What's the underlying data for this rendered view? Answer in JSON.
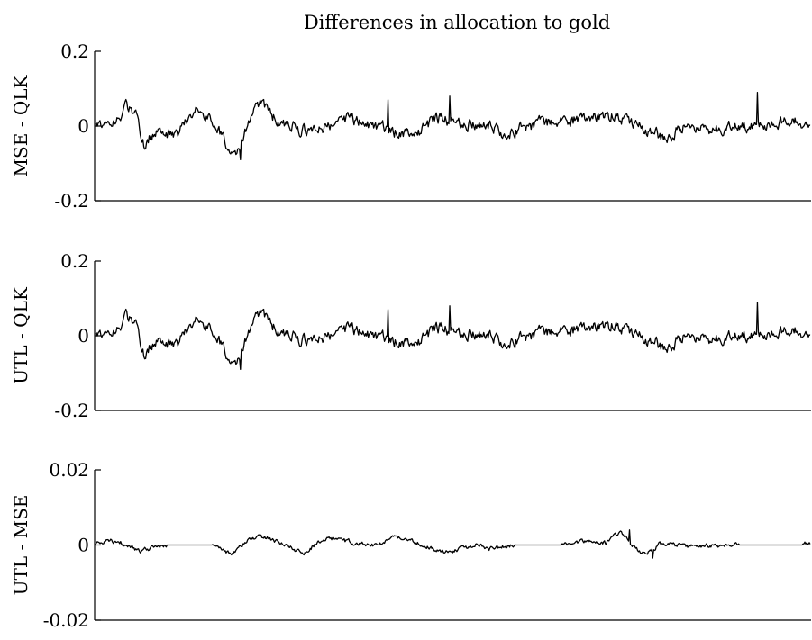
{
  "chart_data": {
    "type": "line",
    "title": "Differences in allocation to gold",
    "n_points": 800,
    "panels": [
      {
        "ylabel": "MSE - QLK",
        "ylim": [
          -0.2,
          0.2
        ],
        "yticks": [
          0.2,
          0,
          -0.2
        ],
        "ytick_labels": [
          "0.2",
          "0",
          "-0.2"
        ],
        "series": [
          {
            "keyframes": [
              [
                0,
                0.01
              ],
              [
                20,
                0.02
              ],
              [
                35,
                0.05
              ],
              [
                45,
                0.03
              ],
              [
                50,
                -0.02
              ],
              [
                55,
                -0.06
              ],
              [
                60,
                -0.03
              ],
              [
                70,
                -0.02
              ],
              [
                90,
                -0.03
              ],
              [
                105,
                0.02
              ],
              [
                115,
                0.04
              ],
              [
                125,
                0.03
              ],
              [
                130,
                0.0
              ],
              [
                140,
                -0.02
              ],
              [
                150,
                -0.06
              ],
              [
                155,
                -0.08
              ],
              [
                160,
                -0.05
              ],
              [
                175,
                0.03
              ],
              [
                185,
                0.06
              ],
              [
                200,
                0.02
              ],
              [
                230,
                -0.01
              ],
              [
                260,
                0.0
              ],
              [
                280,
                0.02
              ],
              [
                300,
                0.01
              ],
              [
                340,
                -0.02
              ],
              [
                360,
                -0.02
              ],
              [
                380,
                0.02
              ],
              [
                410,
                0.01
              ],
              [
                440,
                0.0
              ],
              [
                460,
                -0.02
              ],
              [
                500,
                0.01
              ],
              [
                560,
                0.02
              ],
              [
                580,
                0.03
              ],
              [
                600,
                0.01
              ],
              [
                620,
                -0.02
              ],
              [
                640,
                -0.03
              ],
              [
                660,
                0.0
              ],
              [
                700,
                -0.01
              ],
              [
                720,
                0.0
              ],
              [
                760,
                0.01
              ],
              [
                799,
                0.01
              ]
            ],
            "noise": 0.022,
            "spikes": [
              [
                162,
                -0.09
              ],
              [
                327,
                0.07
              ],
              [
                396,
                0.08
              ],
              [
                740,
                0.09
              ]
            ]
          }
        ]
      },
      {
        "ylabel": "UTL - QLK",
        "ylim": [
          -0.2,
          0.2
        ],
        "yticks": [
          0.2,
          0,
          -0.2
        ],
        "ytick_labels": [
          "0.2",
          "0",
          "-0.2"
        ],
        "series": [
          {
            "keyframes": [
              [
                0,
                0.01
              ],
              [
                20,
                0.02
              ],
              [
                35,
                0.05
              ],
              [
                45,
                0.03
              ],
              [
                50,
                -0.02
              ],
              [
                55,
                -0.06
              ],
              [
                60,
                -0.03
              ],
              [
                70,
                -0.02
              ],
              [
                90,
                -0.03
              ],
              [
                105,
                0.02
              ],
              [
                115,
                0.04
              ],
              [
                125,
                0.03
              ],
              [
                130,
                0.0
              ],
              [
                140,
                -0.02
              ],
              [
                150,
                -0.06
              ],
              [
                155,
                -0.08
              ],
              [
                160,
                -0.05
              ],
              [
                175,
                0.03
              ],
              [
                185,
                0.06
              ],
              [
                200,
                0.02
              ],
              [
                230,
                -0.01
              ],
              [
                260,
                0.0
              ],
              [
                280,
                0.02
              ],
              [
                300,
                0.01
              ],
              [
                340,
                -0.02
              ],
              [
                360,
                -0.02
              ],
              [
                380,
                0.02
              ],
              [
                410,
                0.01
              ],
              [
                440,
                0.0
              ],
              [
                460,
                -0.02
              ],
              [
                500,
                0.01
              ],
              [
                560,
                0.02
              ],
              [
                580,
                0.03
              ],
              [
                600,
                0.01
              ],
              [
                620,
                -0.02
              ],
              [
                640,
                -0.03
              ],
              [
                660,
                0.0
              ],
              [
                700,
                -0.01
              ],
              [
                720,
                0.0
              ],
              [
                760,
                0.01
              ],
              [
                799,
                0.01
              ]
            ],
            "noise": 0.022,
            "spikes": [
              [
                162,
                -0.09
              ],
              [
                327,
                0.07
              ],
              [
                396,
                0.08
              ],
              [
                740,
                0.09
              ]
            ]
          }
        ]
      },
      {
        "ylabel": "UTL - MSE",
        "ylim": [
          -0.02,
          0.02
        ],
        "yticks": [
          0.02,
          0,
          -0.02
        ],
        "ytick_labels": [
          "0.02",
          "0",
          "-0.02"
        ],
        "series": [
          {
            "keyframes": [
              [
                0,
                0.0005
              ],
              [
                10,
                0.001
              ],
              [
                25,
                0.001
              ],
              [
                35,
                0.0
              ],
              [
                50,
                -0.0015
              ],
              [
                60,
                -0.001
              ],
              [
                80,
                0.0
              ],
              [
                130,
                0.0
              ],
              [
                140,
                -0.001
              ],
              [
                150,
                -0.0025
              ],
              [
                160,
                -0.001
              ],
              [
                170,
                0.001
              ],
              [
                180,
                0.002
              ],
              [
                190,
                0.002
              ],
              [
                200,
                0.001
              ],
              [
                215,
                0.0
              ],
              [
                225,
                -0.0015
              ],
              [
                235,
                -0.002
              ],
              [
                245,
                0.0
              ],
              [
                255,
                0.002
              ],
              [
                270,
                0.0015
              ],
              [
                290,
                0.0005
              ],
              [
                310,
                0.0
              ],
              [
                320,
                0.0005
              ],
              [
                335,
                0.002
              ],
              [
                350,
                0.0015
              ],
              [
                365,
                0.0
              ],
              [
                380,
                -0.001
              ],
              [
                395,
                -0.002
              ],
              [
                410,
                -0.001
              ],
              [
                425,
                0.0
              ],
              [
                440,
                -0.001
              ],
              [
                455,
                -0.0005
              ],
              [
                470,
                0.0
              ],
              [
                490,
                0.0
              ],
              [
                510,
                0.0
              ],
              [
                530,
                0.0005
              ],
              [
                550,
                0.001
              ],
              [
                570,
                0.0005
              ],
              [
                580,
                0.0025
              ],
              [
                590,
                0.003
              ],
              [
                600,
                0.0
              ],
              [
                610,
                -0.002
              ],
              [
                620,
                -0.002
              ],
              [
                630,
                0.0
              ],
              [
                640,
                0.0005
              ],
              [
                660,
                -0.0005
              ],
              [
                690,
                0.0
              ],
              [
                700,
                -0.0005
              ],
              [
                720,
                0.0
              ],
              [
                760,
                0.0
              ],
              [
                799,
                0.0005
              ]
            ],
            "noise": 0.0008,
            "flat_ranges": [
              [
                80,
                130
              ],
              [
                470,
                520
              ],
              [
                720,
                790
              ]
            ],
            "spikes": [
              [
                597,
                0.004
              ],
              [
                623,
                -0.0035
              ]
            ]
          }
        ]
      }
    ]
  }
}
